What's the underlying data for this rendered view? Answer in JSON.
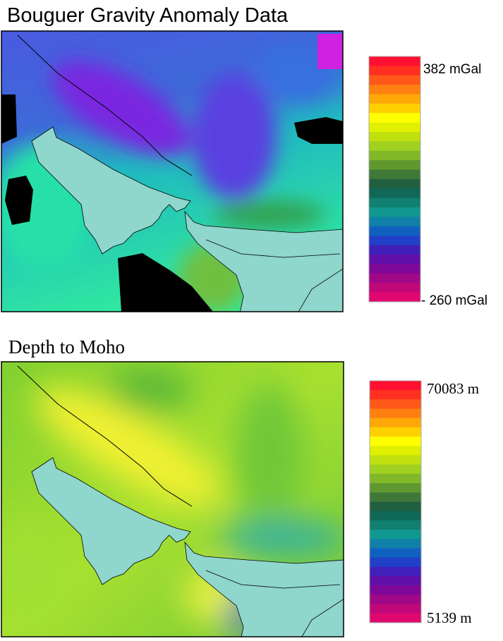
{
  "panels": [
    {
      "title": "Bouguer Gravity Anomaly Data",
      "scale_max": "382 mGal",
      "scale_min": "- 260 mGal"
    },
    {
      "title": "Depth to Moho",
      "scale_max": "70083 m",
      "scale_min": "5139 m"
    }
  ]
}
